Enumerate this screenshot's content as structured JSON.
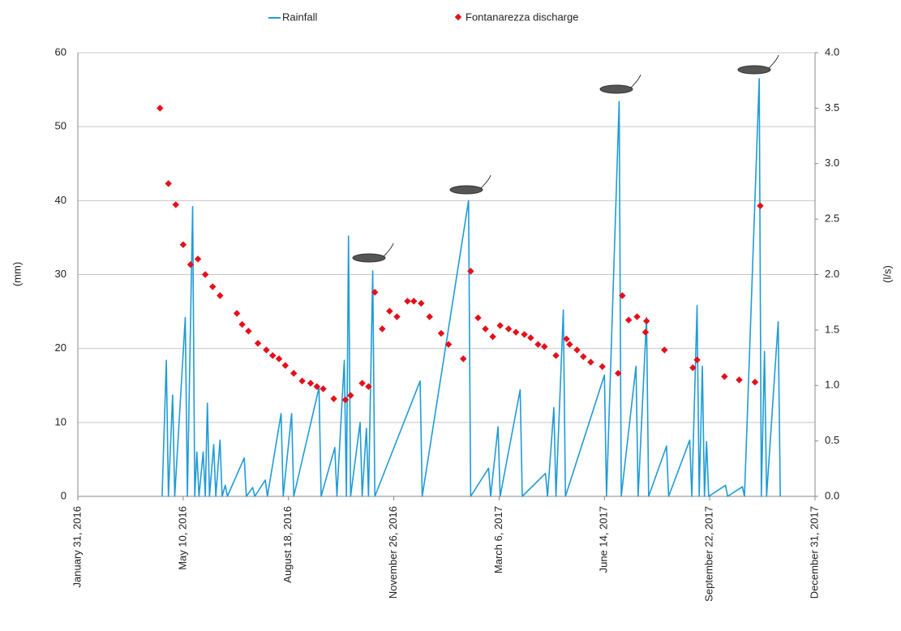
{
  "chart_data": {
    "type": "line_scatter_dual",
    "ylabel": "(mm)",
    "y2label": "(l/s)",
    "xlim": [
      "2016-01-31",
      "2017-12-31"
    ],
    "xticks": [
      {
        "value": "2016-01-31",
        "label": "January 31, 2016"
      },
      {
        "value": "2016-05-10",
        "label": "May 10, 2016"
      },
      {
        "value": "2016-08-18",
        "label": "August 18, 2016"
      },
      {
        "value": "2016-11-26",
        "label": "November 26, 2016"
      },
      {
        "value": "2017-03-06",
        "label": "March 6, 2017"
      },
      {
        "value": "2017-06-14",
        "label": "June 14, 2017"
      },
      {
        "value": "2017-09-22",
        "label": "September 22, 2017"
      },
      {
        "value": "2017-12-31",
        "label": "December 31, 2017"
      }
    ],
    "ylim": [
      0,
      60
    ],
    "yticks": [
      0,
      10,
      20,
      30,
      40,
      50,
      60
    ],
    "y2lim": [
      0,
      4
    ],
    "y2ticks": [
      {
        "value": 0,
        "label": "0.0"
      },
      0.5,
      {
        "value": 1,
        "label": "1.0"
      },
      1.5,
      {
        "value": 2,
        "label": "2.0"
      },
      2.5,
      {
        "value": 3,
        "label": "3.0"
      },
      3.5,
      {
        "value": 4,
        "label": "4.0"
      }
    ],
    "grid": true,
    "legend": "top",
    "series": [
      {
        "name": "Rainfall",
        "kind": "line",
        "color": "#1f9bd7",
        "x": [
          "2016-04-20",
          "2016-04-24",
          "2016-04-26",
          "2016-04-30",
          "2016-05-02",
          "2016-05-12",
          "2016-05-14",
          "2016-05-19",
          "2016-05-21",
          "2016-05-23",
          "2016-05-25",
          "2016-05-29",
          "2016-05-31",
          "2016-06-02",
          "2016-06-04",
          "2016-06-08",
          "2016-06-10",
          "2016-06-14",
          "2016-06-16",
          "2016-06-19",
          "2016-06-21",
          "2016-07-07",
          "2016-07-09",
          "2016-07-15",
          "2016-07-17",
          "2016-07-27",
          "2016-07-29",
          "2016-08-11",
          "2016-08-13",
          "2016-08-21",
          "2016-08-23",
          "2016-09-16",
          "2016-09-18",
          "2016-10-01",
          "2016-10-03",
          "2016-10-10",
          "2016-10-12",
          "2016-10-14",
          "2016-10-16",
          "2016-10-25",
          "2016-10-27",
          "2016-10-31",
          "2016-11-02",
          "2016-11-06",
          "2016-11-08",
          "2016-12-21",
          "2016-12-23",
          "2017-02-05",
          "2017-02-07",
          "2017-02-24",
          "2017-02-26",
          "2017-03-05",
          "2017-03-07",
          "2017-03-26",
          "2017-03-28",
          "2017-04-19",
          "2017-04-21",
          "2017-04-27",
          "2017-04-29",
          "2017-05-06",
          "2017-05-08",
          "2017-06-14",
          "2017-06-16",
          "2017-06-28",
          "2017-06-30",
          "2017-07-14",
          "2017-07-16",
          "2017-07-24",
          "2017-07-26",
          "2017-08-12",
          "2017-08-14",
          "2017-09-03",
          "2017-09-05",
          "2017-09-10",
          "2017-09-12",
          "2017-09-15",
          "2017-09-17",
          "2017-09-19",
          "2017-09-21",
          "2017-10-07",
          "2017-10-09",
          "2017-10-23",
          "2017-10-25",
          "2017-11-08",
          "2017-11-10",
          "2017-11-13",
          "2017-11-15",
          "2017-11-26",
          "2017-11-28"
        ],
        "values": [
          0,
          18.4,
          0,
          13.7,
          0,
          24.2,
          0,
          39.2,
          0,
          6,
          0,
          6,
          0,
          12.6,
          0,
          7,
          0,
          7.6,
          0,
          1.5,
          0,
          5.2,
          0,
          1.2,
          0,
          2.2,
          0,
          11.2,
          0,
          11.2,
          0,
          14.7,
          0,
          6.6,
          0,
          18.4,
          0,
          35.2,
          0,
          10,
          0,
          9.2,
          0,
          30.5,
          0,
          15.6,
          0,
          40,
          0,
          3.8,
          0,
          9.4,
          0,
          14.4,
          0,
          3.1,
          0,
          12,
          0,
          25.2,
          0,
          16.4,
          0,
          53.4,
          0,
          17.6,
          0,
          24.2,
          0,
          6.8,
          0,
          7.6,
          0,
          25.8,
          0,
          17.6,
          0,
          7.4,
          0,
          1.5,
          0,
          1.3,
          0,
          56.5,
          0,
          19.6,
          0,
          23.6,
          0
        ]
      },
      {
        "name": "Fontanarezza discharge",
        "kind": "scatter",
        "axis": "y2",
        "color": "#e3101a",
        "x": [
          "2016-04-18",
          "2016-04-26",
          "2016-05-03",
          "2016-05-10",
          "2016-05-17",
          "2016-05-24",
          "2016-05-31",
          "2016-06-07",
          "2016-06-14",
          "2016-06-30",
          "2016-07-05",
          "2016-07-11",
          "2016-07-20",
          "2016-07-28",
          "2016-08-03",
          "2016-08-09",
          "2016-08-15",
          "2016-08-23",
          "2016-08-31",
          "2016-09-08",
          "2016-09-14",
          "2016-09-20",
          "2016-09-30",
          "2016-10-11",
          "2016-10-16",
          "2016-10-27",
          "2016-11-02",
          "2016-11-08",
          "2016-11-15",
          "2016-11-22",
          "2016-11-29",
          "2016-12-09",
          "2016-12-15",
          "2016-12-22",
          "2016-12-30",
          "2017-01-10",
          "2017-01-17",
          "2017-01-31",
          "2017-02-07",
          "2017-02-14",
          "2017-02-21",
          "2017-02-28",
          "2017-03-07",
          "2017-03-15",
          "2017-03-22",
          "2017-03-30",
          "2017-04-05",
          "2017-04-12",
          "2017-04-18",
          "2017-04-29",
          "2017-05-09",
          "2017-05-12",
          "2017-05-19",
          "2017-05-25",
          "2017-06-01",
          "2017-06-12",
          "2017-06-27",
          "2017-07-01",
          "2017-07-07",
          "2017-07-15",
          "2017-07-23",
          "2017-07-24",
          "2017-08-10",
          "2017-09-06",
          "2017-09-10",
          "2017-10-06",
          "2017-10-20",
          "2017-11-04",
          "2017-11-09"
        ],
        "values": [
          3.5,
          2.82,
          2.63,
          2.27,
          2.09,
          2.14,
          2.0,
          1.89,
          1.81,
          1.65,
          1.55,
          1.49,
          1.38,
          1.32,
          1.27,
          1.24,
          1.18,
          1.11,
          1.04,
          1.02,
          0.99,
          0.97,
          0.88,
          0.87,
          0.91,
          1.02,
          0.99,
          1.84,
          1.51,
          1.67,
          1.62,
          1.76,
          1.76,
          1.74,
          1.62,
          1.47,
          1.37,
          1.24,
          2.03,
          1.61,
          1.51,
          1.44,
          1.54,
          1.51,
          1.48,
          1.46,
          1.43,
          1.37,
          1.35,
          1.27,
          1.42,
          1.37,
          1.32,
          1.26,
          1.21,
          1.17,
          1.11,
          1.81,
          1.59,
          1.62,
          1.48,
          1.58,
          1.32,
          1.16,
          1.23,
          1.08,
          1.05,
          1.03,
          2.62
        ]
      }
    ]
  }
}
